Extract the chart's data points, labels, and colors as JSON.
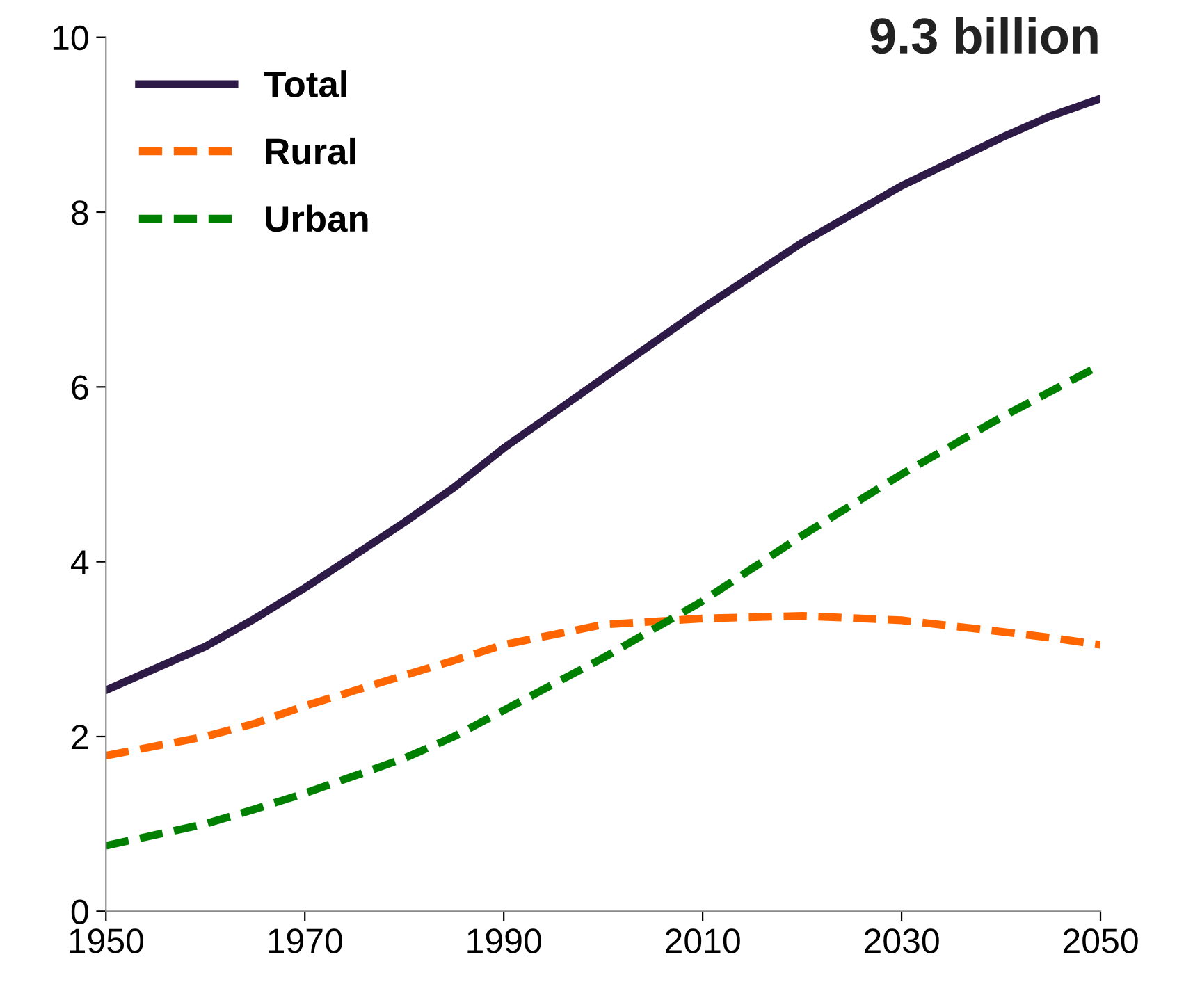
{
  "chart_data": {
    "type": "line",
    "x": [
      1950,
      1960,
      1965,
      1970,
      1980,
      1985,
      1990,
      2000,
      2010,
      2020,
      2030,
      2040,
      2045,
      2050
    ],
    "series": [
      {
        "name": "Total",
        "color": "#2e1a47",
        "line_style": "solid",
        "values": [
          2.53,
          3.03,
          3.35,
          3.7,
          4.45,
          4.85,
          5.3,
          6.1,
          6.9,
          7.65,
          8.3,
          8.85,
          9.1,
          9.3
        ]
      },
      {
        "name": "Rural",
        "color": "#ff6600",
        "line_style": "dashed",
        "values": [
          1.78,
          2.0,
          2.15,
          2.35,
          2.7,
          2.87,
          3.05,
          3.28,
          3.35,
          3.38,
          3.33,
          3.2,
          3.13,
          3.05
        ]
      },
      {
        "name": "Urban",
        "color": "#008000",
        "line_style": "dashed",
        "values": [
          0.75,
          1.0,
          1.17,
          1.35,
          1.75,
          2.0,
          2.3,
          2.9,
          3.55,
          4.3,
          5.0,
          5.65,
          5.95,
          6.25
        ]
      }
    ],
    "xlim": [
      1950,
      2050
    ],
    "xticks": [
      1950,
      1970,
      1990,
      2010,
      2030,
      2050
    ],
    "ylim": [
      0,
      10
    ],
    "yticks": [
      0,
      2,
      4,
      6,
      8,
      10
    ],
    "grid": false,
    "legend": "top left",
    "marker": "none",
    "annotations": [
      {
        "text": "9.3 billion",
        "x": 2050,
        "y": 9.3
      }
    ]
  }
}
